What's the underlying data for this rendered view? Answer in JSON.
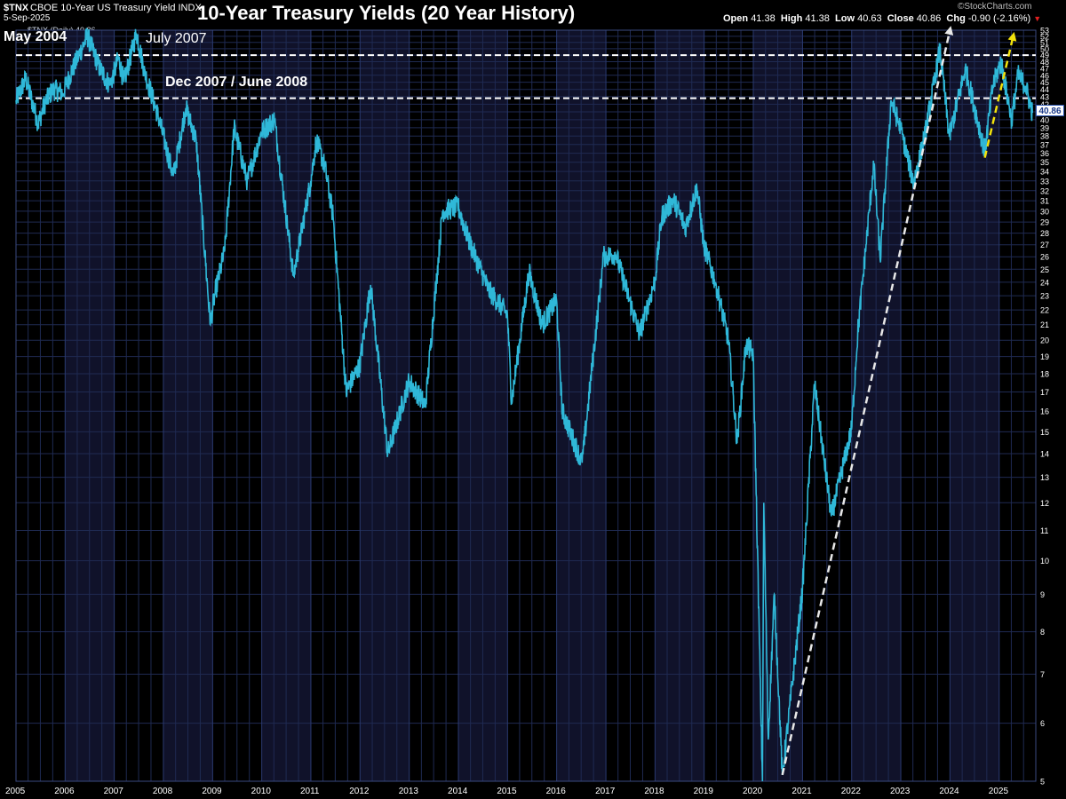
{
  "header": {
    "symbol": "$TNX",
    "description": "CBOE 10-Year US Treasury Yield INDX",
    "date": "5-Sep-2025",
    "title": "10-Year Treasury Yields (20 Year History)",
    "brand": "©StockCharts.com",
    "open_label": "Open",
    "open_value": "41.38",
    "high_label": "High",
    "high_value": "41.38",
    "low_label": "Low",
    "low_value": "40.63",
    "close_label": "Close",
    "close_value": "40.86",
    "chg_label": "Chg",
    "chg_value": "-0.90 (-2.16%)"
  },
  "legend": {
    "text": "$TNX (Daily) 40.86"
  },
  "last_value_label": "40.86",
  "annotations": {
    "may2004": "May 2004",
    "july2007": "July 2007",
    "dec2007": "Dec 2007 / June 2008"
  },
  "colors": {
    "line": "#2fb8d8",
    "band_alt": "#10122a",
    "grid": "#1f2a52",
    "white_trend": "#e8e8e8",
    "yellow_trend": "#f2e20c"
  },
  "chart_data": {
    "type": "line",
    "y_scale": "log",
    "ylim": [
      5,
      53
    ],
    "xlim": [
      "2005-01-01",
      "2025-09-30"
    ],
    "x_ticks": [
      "2005",
      "2006",
      "2007",
      "2008",
      "2009",
      "2010",
      "2011",
      "2012",
      "2013",
      "2014",
      "2015",
      "2016",
      "2017",
      "2018",
      "2019",
      "2020",
      "2021",
      "2022",
      "2023",
      "2024",
      "2025"
    ],
    "y_ticks": [
      5,
      6,
      7,
      8,
      9,
      10,
      11,
      12,
      13,
      14,
      15,
      16,
      17,
      18,
      19,
      20,
      21,
      22,
      23,
      24,
      25,
      26,
      27,
      28,
      29,
      30,
      31,
      32,
      33,
      34,
      35,
      36,
      37,
      38,
      39,
      40,
      41,
      42,
      43,
      44,
      45,
      46,
      47,
      48,
      49,
      50,
      51,
      52,
      53
    ],
    "grid": true,
    "series": [
      {
        "name": "$TNX (Daily)",
        "points": [
          [
            "2005-01-01",
            42.5
          ],
          [
            "2005-03-15",
            45.5
          ],
          [
            "2005-06-15",
            39.5
          ],
          [
            "2005-08-01",
            42.0
          ],
          [
            "2005-10-01",
            44.0
          ],
          [
            "2005-12-15",
            43.5
          ],
          [
            "2006-03-01",
            47.0
          ],
          [
            "2006-06-15",
            52.0
          ],
          [
            "2006-09-15",
            47.0
          ],
          [
            "2006-12-01",
            44.5
          ],
          [
            "2007-02-01",
            48.5
          ],
          [
            "2007-03-15",
            45.0
          ],
          [
            "2007-06-15",
            52.5
          ],
          [
            "2007-08-15",
            46.5
          ],
          [
            "2007-12-01",
            40.0
          ],
          [
            "2008-03-15",
            33.5
          ],
          [
            "2008-06-15",
            41.5
          ],
          [
            "2008-09-01",
            37.5
          ],
          [
            "2008-12-15",
            21.0
          ],
          [
            "2009-01-15",
            23.0
          ],
          [
            "2009-04-01",
            26.5
          ],
          [
            "2009-06-10",
            39.0
          ],
          [
            "2009-09-15",
            33.0
          ],
          [
            "2009-12-31",
            38.5
          ],
          [
            "2010-04-05",
            40.0
          ],
          [
            "2010-08-25",
            24.5
          ],
          [
            "2010-12-31",
            33.0
          ],
          [
            "2011-02-10",
            37.5
          ],
          [
            "2011-04-15",
            34.5
          ],
          [
            "2011-06-15",
            29.5
          ],
          [
            "2011-09-20",
            17.0
          ],
          [
            "2011-12-31",
            18.5
          ],
          [
            "2012-03-20",
            23.8
          ],
          [
            "2012-07-25",
            14.0
          ],
          [
            "2012-12-31",
            17.6
          ],
          [
            "2013-05-01",
            16.3
          ],
          [
            "2013-09-05",
            30.0
          ],
          [
            "2013-12-31",
            30.4
          ],
          [
            "2014-03-15",
            27.5
          ],
          [
            "2014-08-15",
            23.4
          ],
          [
            "2014-12-31",
            21.7
          ],
          [
            "2015-01-31",
            16.5
          ],
          [
            "2015-06-10",
            24.8
          ],
          [
            "2015-09-15",
            21.0
          ],
          [
            "2015-12-31",
            22.7
          ],
          [
            "2016-02-11",
            16.0
          ],
          [
            "2016-07-08",
            13.6
          ],
          [
            "2016-12-15",
            26.0
          ],
          [
            "2017-03-15",
            26.2
          ],
          [
            "2017-09-08",
            20.4
          ],
          [
            "2017-12-31",
            24.1
          ],
          [
            "2018-02-20",
            29.5
          ],
          [
            "2018-05-17",
            31.1
          ],
          [
            "2018-08-15",
            28.5
          ],
          [
            "2018-11-08",
            32.3
          ],
          [
            "2018-12-31",
            26.9
          ],
          [
            "2019-03-29",
            23.9
          ],
          [
            "2019-06-30",
            20.0
          ],
          [
            "2019-09-03",
            14.5
          ],
          [
            "2019-11-07",
            19.7
          ],
          [
            "2019-12-31",
            19.2
          ],
          [
            "2020-03-09",
            5.0
          ],
          [
            "2020-03-19",
            12.0
          ],
          [
            "2020-04-21",
            5.7
          ],
          [
            "2020-06-05",
            9.0
          ],
          [
            "2020-08-04",
            5.1
          ],
          [
            "2020-12-31",
            9.1
          ],
          [
            "2021-03-31",
            17.4
          ],
          [
            "2021-08-03",
            11.5
          ],
          [
            "2021-12-31",
            15.1
          ],
          [
            "2022-02-15",
            20.5
          ],
          [
            "2022-06-14",
            34.8
          ],
          [
            "2022-08-01",
            25.7
          ],
          [
            "2022-10-21",
            42.5
          ],
          [
            "2022-12-31",
            38.8
          ],
          [
            "2023-04-06",
            32.8
          ],
          [
            "2023-06-30",
            38.2
          ],
          [
            "2023-10-19",
            49.9
          ],
          [
            "2023-12-27",
            37.9
          ],
          [
            "2024-04-25",
            47.0
          ],
          [
            "2024-09-16",
            36.2
          ],
          [
            "2024-11-15",
            44.5
          ],
          [
            "2025-01-14",
            48.0
          ],
          [
            "2025-04-04",
            40.0
          ],
          [
            "2025-05-21",
            46.0
          ],
          [
            "2025-07-15",
            44.5
          ],
          [
            "2025-09-05",
            40.86
          ]
        ]
      }
    ],
    "reference_lines": [
      {
        "y": 49.0
      },
      {
        "y": 42.8
      }
    ],
    "trend_lines": [
      {
        "color": "white",
        "from": [
          "2020-08-04",
          5.1
        ],
        "to": [
          "2024-01-01",
          53.0
        ]
      },
      {
        "color": "yellow",
        "from": [
          "2024-09-16",
          35.5
        ],
        "to": [
          "2025-04-15",
          52.0
        ]
      }
    ]
  }
}
